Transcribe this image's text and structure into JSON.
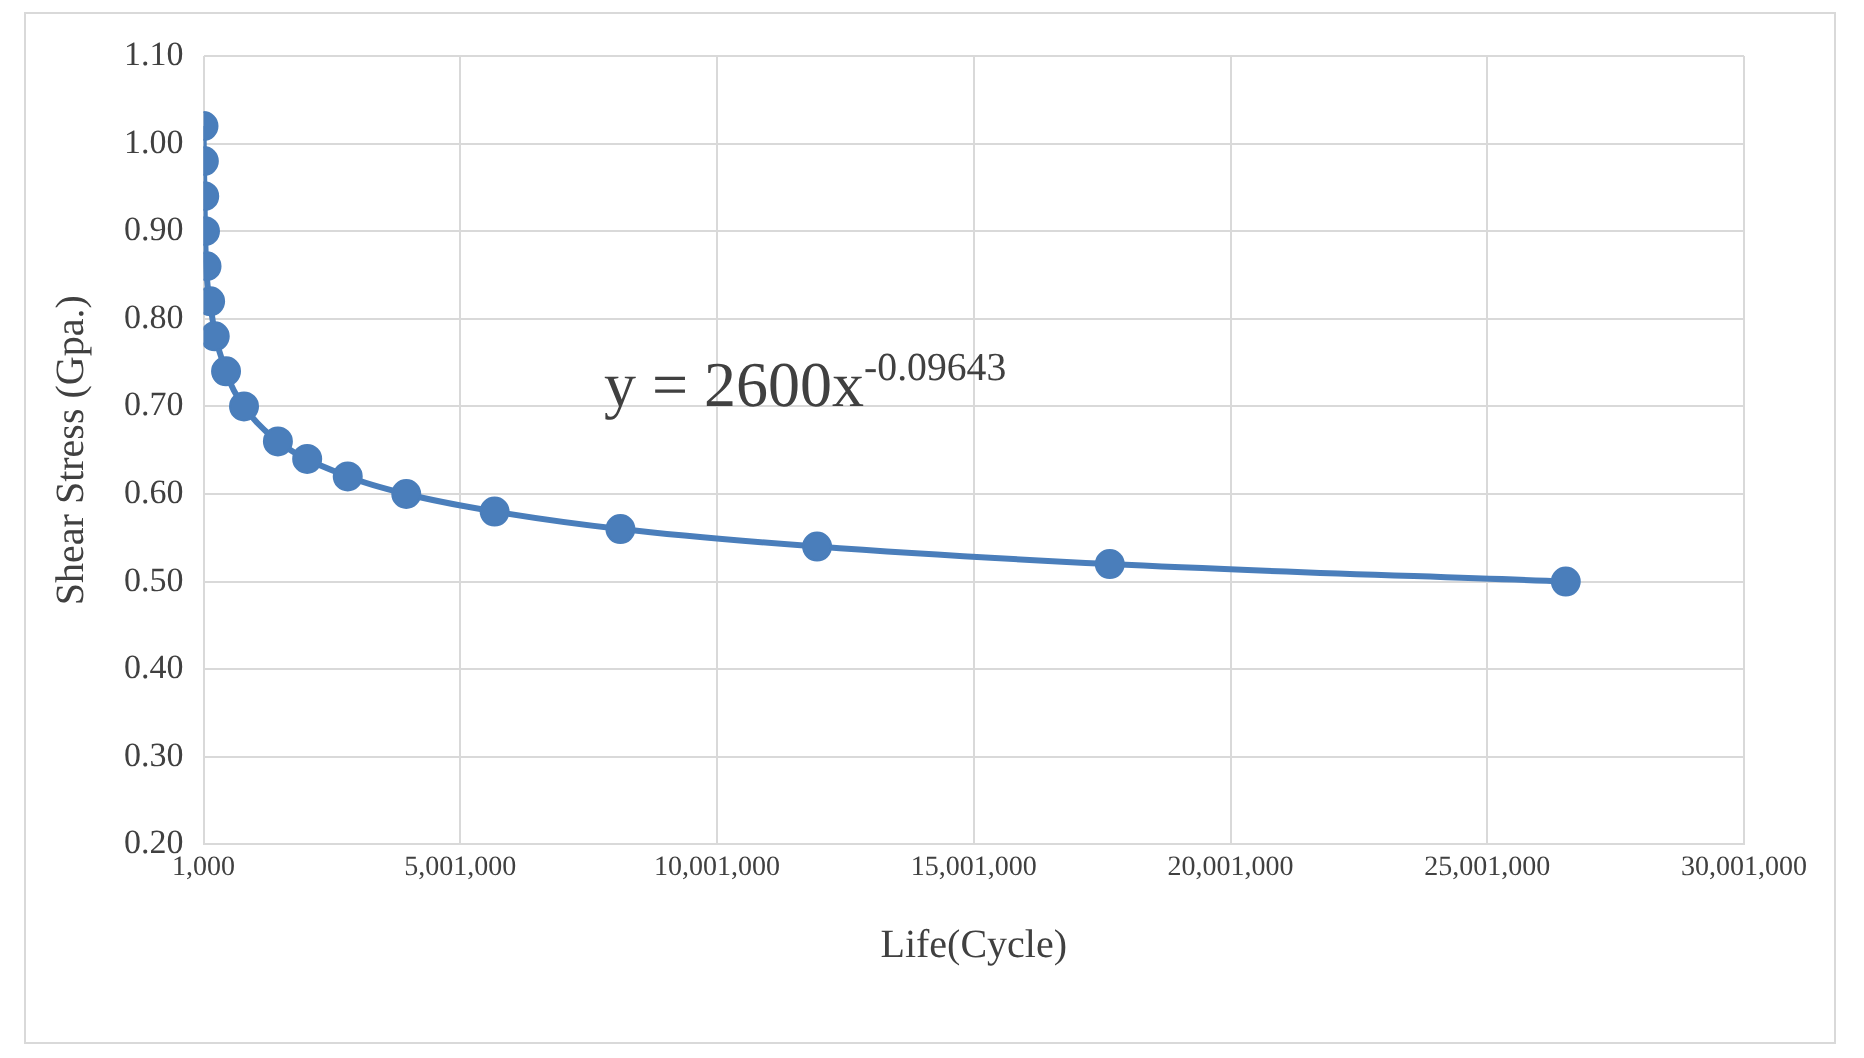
{
  "chart_data": {
    "type": "scatter",
    "xlabel": "Life(Cycle)",
    "ylabel": "Shear Stress (Gpa.)",
    "annotations": [
      "y = 2600x$^{-0.09643}$"
    ],
    "series": [
      {
        "color": "#4a7ebb",
        "marker": "circle",
        "x": [
          1000,
          8000,
          15000,
          30000,
          60000,
          130000,
          220000,
          440000,
          790000,
          1450000,
          2020000,
          2810000,
          3950000,
          5670000,
          8120000,
          11950000,
          17650000,
          26530000
        ],
        "values": [
          1.02,
          0.98,
          0.94,
          0.9,
          0.86,
          0.82,
          0.78,
          0.74,
          0.7,
          0.66,
          0.64,
          0.62,
          0.6,
          0.58,
          0.56,
          0.54,
          0.52,
          0.5
        ]
      },
      {
        "type": "line",
        "color": "#4a7ebb",
        "marker": "none",
        "x": [
          1000,
          30000,
          130000,
          440000,
          790000,
          1450000,
          2810000,
          3950000,
          5670000,
          8120000,
          11950000,
          17650000,
          26530000
        ],
        "values": [
          1.02,
          0.9,
          0.82,
          0.74,
          0.7,
          0.66,
          0.62,
          0.6,
          0.58,
          0.56,
          0.54,
          0.52,
          0.5
        ]
      }
    ],
    "xlim": [
      1000,
      30001000
    ],
    "xticks": [
      {
        "value": 1000,
        "label": "1,000"
      },
      {
        "value": 5001000,
        "label": "5,001,000"
      },
      {
        "value": 10001000,
        "label": "10,001,000"
      },
      {
        "value": 15001000,
        "label": "15,001,000"
      },
      {
        "value": 20001000,
        "label": "20,001,000"
      },
      {
        "value": 25001000,
        "label": "25,001,000"
      },
      {
        "value": 30001000,
        "label": "30,001,000"
      }
    ],
    "ylim": [
      0.2,
      1.1
    ],
    "yticks": [
      {
        "value": 0.2,
        "label": "0.20"
      },
      {
        "value": 0.3,
        "label": "0.30"
      },
      {
        "value": 0.4,
        "label": "0.40"
      },
      {
        "value": 0.5,
        "label": "0.50"
      },
      {
        "value": 0.6,
        "label": "0.60"
      },
      {
        "value": 0.7,
        "label": "0.70"
      },
      {
        "value": 0.8,
        "label": "0.80"
      },
      {
        "value": 0.9,
        "label": "0.90"
      },
      {
        "value": 1.0,
        "label": "1.00"
      },
      {
        "value": 1.1,
        "label": "1.10"
      }
    ],
    "grid": true,
    "legend": false,
    "line_style": "solid"
  }
}
